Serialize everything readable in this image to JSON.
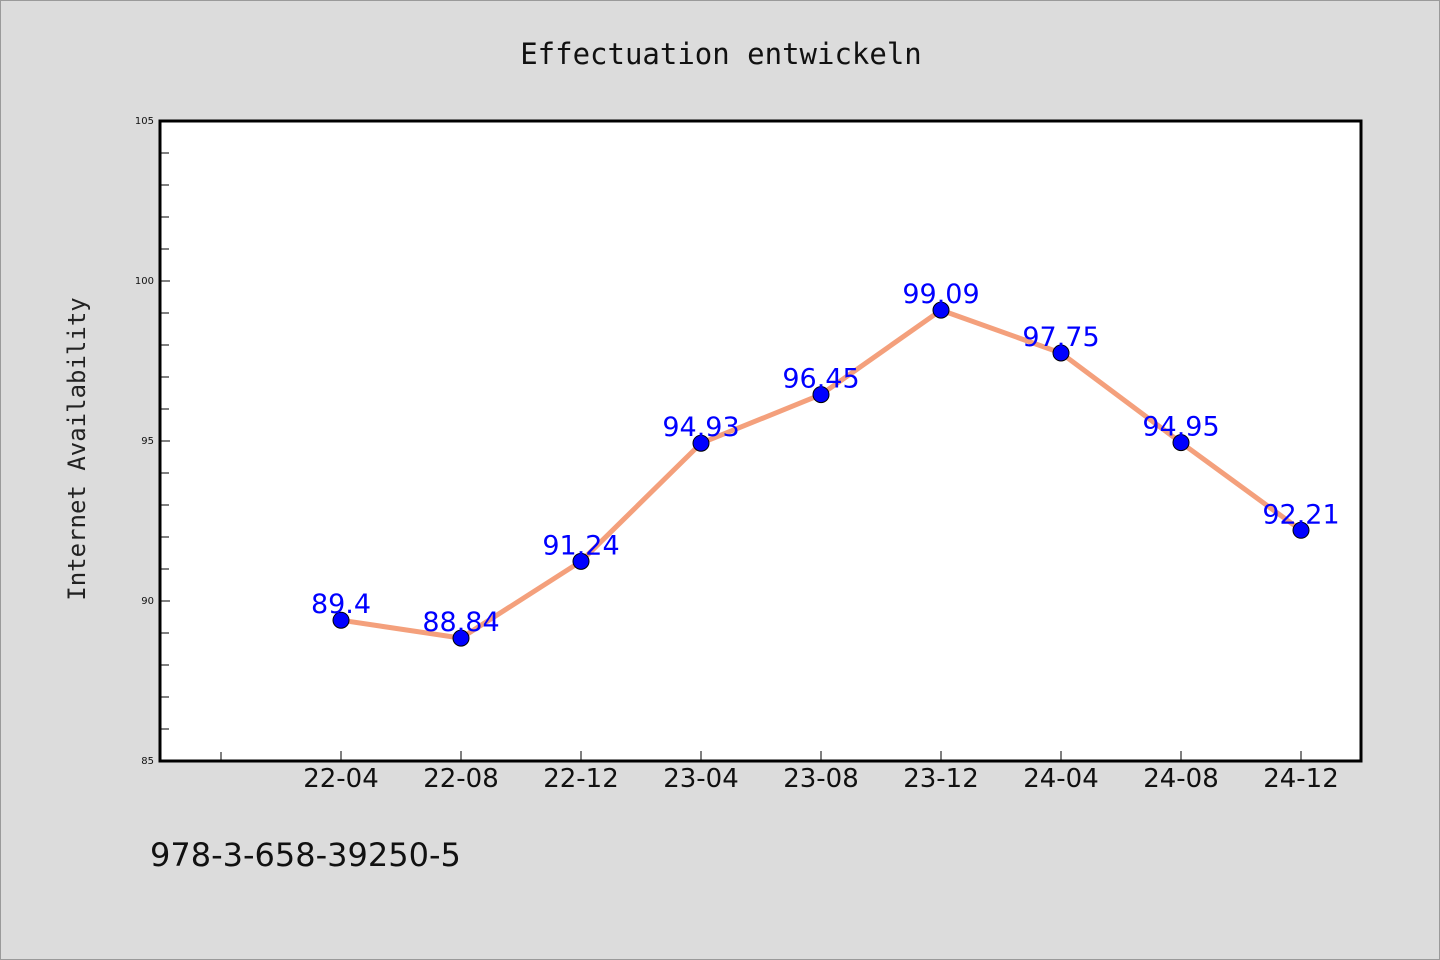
{
  "chart_data": {
    "type": "line",
    "title": "Effectuation entwickeln",
    "xlabel": "",
    "ylabel": "Internet Availability",
    "ylim": [
      85,
      105
    ],
    "yticks": [
      "85",
      "90",
      "95",
      "100",
      "105"
    ],
    "categories": [
      "22-04",
      "22-08",
      "22-12",
      "23-04",
      "23-08",
      "23-12",
      "24-04",
      "24-08",
      "24-12"
    ],
    "series": [
      {
        "values": [
          89.4,
          88.84,
          91.24,
          94.93,
          96.45,
          99.09,
          97.75,
          94.95,
          92.21
        ],
        "labels": [
          "89.4",
          "88.84",
          "91.24",
          "94.93",
          "96.45",
          "99.09",
          "97.75",
          "94.95",
          "92.21"
        ],
        "line_color": "#f4a07c",
        "marker_color": "#0000ff"
      }
    ],
    "grid": false,
    "legend": "none"
  },
  "footer": {
    "isbn": "978-3-658-39250-5"
  }
}
